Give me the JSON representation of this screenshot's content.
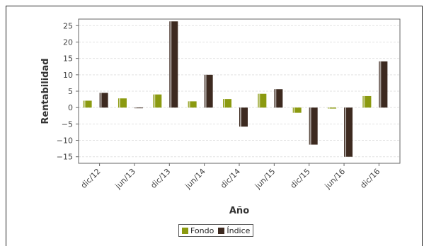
{
  "chart_data": {
    "type": "bar",
    "title": "",
    "xlabel": "Año",
    "ylabel": "Rentabilidad",
    "categories": [
      "dic/12",
      "jun/13",
      "dic/13",
      "jun/14",
      "dic/14",
      "jun/15",
      "dic/15",
      "jun/16",
      "dic/16"
    ],
    "series": [
      {
        "name": "Fondo",
        "color": "#8b9a10",
        "values": [
          2.1,
          2.8,
          4.0,
          1.9,
          2.6,
          4.2,
          -1.6,
          -0.3,
          3.5
        ]
      },
      {
        "name": "Índice",
        "color": "#3d2a20",
        "values": [
          4.5,
          -0.1,
          26.3,
          10.0,
          -5.8,
          5.6,
          -11.3,
          -15.0,
          14.1
        ]
      }
    ],
    "ylim": [
      -17,
      27
    ],
    "yticks": [
      -15,
      -10,
      -5,
      0,
      5,
      10,
      15,
      20,
      25
    ],
    "grid": true,
    "legend_position": "bottom"
  }
}
